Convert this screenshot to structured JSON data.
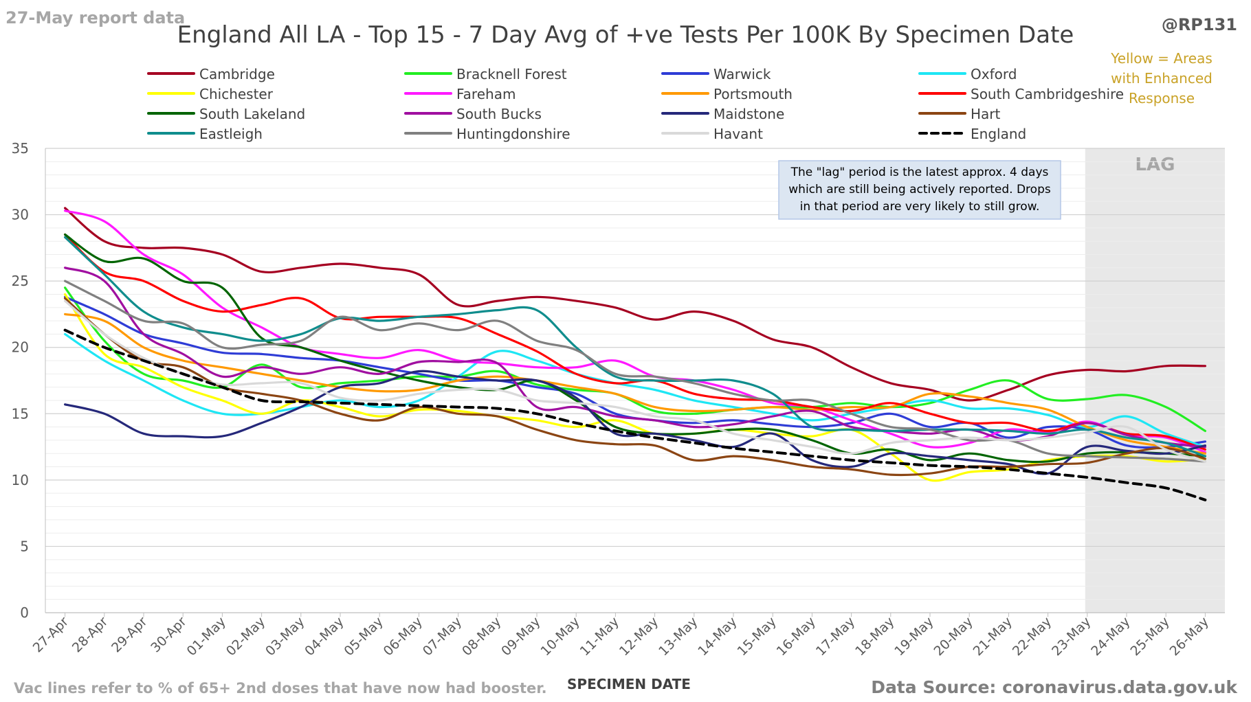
{
  "header": {
    "report_label": "27-May report data",
    "handle": "@RP131",
    "enhanced_note": [
      "Yellow = Areas",
      "with Enhanced",
      "Response"
    ]
  },
  "lag_note": [
    "The \"lag\" period is the latest approx. 4 days",
    "which are still being actively reported.  Drops",
    "in that period are very likely to still grow."
  ],
  "footer": {
    "vac_note": "Vac lines refer to % of 65+ 2nd doses that have now had booster.",
    "source": "Data Source: coronavirus.data.gov.uk"
  },
  "colors": {
    "enhanced_text": "#C9A227",
    "lag_shade": "#E8E8E8",
    "grid": "#E0E0E0",
    "axis_text": "#595959",
    "note_box": "#DCE6F2"
  },
  "chart_data": {
    "type": "line",
    "title": "England All LA - Top 15 - 7 Day Avg of +ve Tests Per 100K By Specimen Date",
    "xlabel": "SPECIMEN DATE",
    "ylabel": "",
    "ylim": [
      0,
      35
    ],
    "yticks": [
      0,
      5,
      10,
      15,
      20,
      25,
      30,
      35
    ],
    "grid": true,
    "legend": "top",
    "lag_label": "LAG",
    "lag_start": "23-May",
    "categories": [
      "27-Apr",
      "28-Apr",
      "29-Apr",
      "30-Apr",
      "01-May",
      "02-May",
      "03-May",
      "04-May",
      "05-May",
      "06-May",
      "07-May",
      "08-May",
      "09-May",
      "10-May",
      "11-May",
      "12-May",
      "13-May",
      "14-May",
      "15-May",
      "16-May",
      "17-May",
      "18-May",
      "19-May",
      "20-May",
      "21-May",
      "22-May",
      "23-May",
      "24-May",
      "25-May",
      "26-May"
    ],
    "series": [
      {
        "name": "Cambridge",
        "color": "#A50021",
        "values": [
          30.5,
          28.0,
          27.5,
          27.5,
          27.0,
          25.7,
          26.0,
          26.3,
          26.0,
          25.5,
          23.2,
          23.5,
          23.8,
          23.5,
          23.0,
          22.1,
          22.7,
          22.0,
          20.6,
          20.0,
          18.5,
          17.3,
          16.8,
          16.0,
          16.8,
          17.9,
          18.3,
          18.2,
          18.6,
          18.6
        ]
      },
      {
        "name": "Bracknell Forest",
        "color": "#22EE22",
        "values": [
          24.5,
          20.5,
          18.0,
          17.5,
          17.0,
          18.7,
          17.0,
          17.3,
          17.5,
          17.8,
          17.8,
          18.2,
          17.2,
          16.8,
          16.5,
          15.2,
          15.0,
          15.3,
          15.5,
          15.5,
          15.8,
          15.5,
          15.8,
          16.8,
          17.5,
          16.1,
          16.1,
          16.4,
          15.5,
          13.7
        ]
      },
      {
        "name": "Warwick",
        "color": "#2E3CD6",
        "values": [
          23.8,
          22.5,
          21.0,
          20.3,
          19.6,
          19.5,
          19.2,
          19.0,
          18.5,
          18.0,
          17.5,
          17.5,
          17.0,
          16.5,
          15.0,
          14.5,
          14.3,
          14.5,
          14.2,
          14.0,
          14.3,
          15.0,
          14.0,
          14.3,
          13.2,
          14.0,
          13.8,
          12.6,
          12.5,
          12.9
        ]
      },
      {
        "name": "Oxford",
        "color": "#1EE6F4",
        "values": [
          21.0,
          19.0,
          17.5,
          16.0,
          15.0,
          15.0,
          15.5,
          16.0,
          15.5,
          16.0,
          17.8,
          19.7,
          19.0,
          18.0,
          17.3,
          16.8,
          16.0,
          15.5,
          15.0,
          14.5,
          15.0,
          15.5,
          16.0,
          15.4,
          15.4,
          14.9,
          14.0,
          14.8,
          13.5,
          12.5
        ]
      },
      {
        "name": "Chichester",
        "color": "#FFFF00",
        "values": [
          24.0,
          19.5,
          18.5,
          17.0,
          16.0,
          15.0,
          16.0,
          15.5,
          14.8,
          15.3,
          15.2,
          14.8,
          14.5,
          14.0,
          14.5,
          13.5,
          13.5,
          13.8,
          13.5,
          13.3,
          13.8,
          12.0,
          10.0,
          10.6,
          10.8,
          11.5,
          11.8,
          11.8,
          11.4,
          11.6
        ]
      },
      {
        "name": "Fareham",
        "color": "#FF19FF",
        "values": [
          30.3,
          29.5,
          27.0,
          25.5,
          23.0,
          21.5,
          20.0,
          19.5,
          19.2,
          19.8,
          19.0,
          18.8,
          18.5,
          18.5,
          19.0,
          17.8,
          17.5,
          16.8,
          15.8,
          15.5,
          14.5,
          13.5,
          12.5,
          12.8,
          13.8,
          13.6,
          14.4,
          13.4,
          13.2,
          12.1
        ]
      },
      {
        "name": "Portsmouth",
        "color": "#FF9900",
        "values": [
          22.5,
          22.0,
          20.0,
          19.0,
          18.5,
          18.0,
          17.5,
          17.0,
          16.7,
          16.8,
          17.5,
          17.8,
          17.5,
          17.0,
          16.5,
          15.5,
          15.2,
          15.3,
          15.5,
          15.3,
          15.5,
          15.5,
          16.5,
          16.3,
          15.8,
          15.3,
          14.0,
          13.0,
          12.5,
          12.0
        ]
      },
      {
        "name": "South Cambridgeshire",
        "color": "#FF0000",
        "values": [
          28.5,
          25.7,
          25.0,
          23.5,
          22.7,
          23.2,
          23.7,
          22.2,
          22.3,
          22.3,
          22.2,
          21.0,
          19.7,
          18.0,
          17.3,
          17.5,
          16.5,
          16.1,
          16.0,
          15.5,
          15.2,
          15.8,
          15.0,
          14.3,
          14.3,
          13.7,
          14.3,
          13.5,
          13.3,
          12.3
        ]
      },
      {
        "name": "South Lakeland",
        "color": "#006400",
        "values": [
          28.5,
          26.5,
          26.7,
          25.0,
          24.5,
          20.7,
          20.0,
          19.0,
          18.2,
          17.5,
          17.0,
          16.8,
          17.5,
          16.0,
          14.0,
          13.5,
          13.5,
          13.8,
          13.8,
          13.0,
          12.0,
          12.3,
          11.5,
          12.0,
          11.5,
          11.4,
          12.0,
          12.1,
          12.0,
          11.8
        ]
      },
      {
        "name": "South Bucks",
        "color": "#A00FA0",
        "values": [
          26.0,
          25.0,
          21.0,
          19.5,
          17.8,
          18.5,
          18.0,
          18.5,
          18.0,
          18.9,
          18.9,
          18.8,
          15.5,
          15.5,
          14.8,
          14.5,
          14.0,
          14.2,
          14.8,
          15.2,
          14.0,
          13.7,
          13.5,
          13.8,
          13.0,
          13.3,
          14.3,
          13.4,
          12.8,
          12.5
        ]
      },
      {
        "name": "Maidstone",
        "color": "#25287A",
        "values": [
          15.7,
          15.0,
          13.5,
          13.3,
          13.3,
          14.3,
          15.5,
          17.0,
          17.3,
          18.2,
          17.8,
          17.5,
          17.5,
          16.2,
          13.5,
          13.5,
          13.0,
          12.5,
          13.5,
          11.5,
          11.0,
          12.0,
          11.8,
          11.5,
          11.2,
          10.5,
          12.5,
          12.2,
          12.0,
          12.6
        ]
      },
      {
        "name": "Hart",
        "color": "#8B4513",
        "values": [
          23.7,
          21.0,
          19.0,
          18.5,
          17.0,
          16.5,
          16.0,
          15.0,
          14.5,
          15.5,
          15.0,
          14.8,
          13.8,
          13.0,
          12.7,
          12.6,
          11.5,
          11.8,
          11.5,
          11.0,
          10.8,
          10.4,
          10.5,
          11.0,
          11.0,
          11.2,
          11.3,
          12.0,
          12.4,
          11.6
        ]
      },
      {
        "name": "Eastleigh",
        "color": "#108D8D",
        "values": [
          28.3,
          25.5,
          22.7,
          21.5,
          21.0,
          20.5,
          21.0,
          22.2,
          22.0,
          22.3,
          22.5,
          22.8,
          22.8,
          20.0,
          17.8,
          17.5,
          17.5,
          17.5,
          16.5,
          14.0,
          13.8,
          13.7,
          13.8,
          13.8,
          13.7,
          13.5,
          13.8,
          13.2,
          12.8,
          11.8
        ]
      },
      {
        "name": "Huntingdonshire",
        "color": "#808080",
        "values": [
          25.0,
          23.5,
          22.0,
          21.8,
          20.0,
          20.2,
          20.5,
          22.3,
          21.3,
          21.8,
          21.3,
          22.0,
          20.5,
          19.8,
          18.0,
          17.8,
          17.3,
          16.5,
          16.0,
          16.0,
          15.0,
          14.0,
          13.8,
          13.0,
          13.0,
          12.0,
          11.8,
          11.7,
          11.6,
          11.4
        ]
      },
      {
        "name": "Havant",
        "color": "#D9D9D9",
        "values": [
          23.5,
          21.0,
          19.2,
          18.0,
          17.2,
          17.3,
          17.3,
          16.2,
          16.0,
          16.5,
          16.8,
          16.8,
          16.0,
          15.8,
          15.5,
          14.8,
          14.5,
          13.5,
          13.0,
          12.5,
          12.0,
          12.8,
          13.0,
          13.2,
          13.0,
          13.2,
          13.6,
          14.0,
          12.3,
          11.4
        ]
      },
      {
        "name": "England",
        "color": "#000000",
        "dashed": true,
        "values": [
          21.3,
          20.0,
          19.0,
          18.0,
          17.0,
          16.0,
          15.9,
          15.8,
          15.7,
          15.6,
          15.5,
          15.4,
          15.0,
          14.3,
          13.7,
          13.2,
          12.8,
          12.4,
          12.1,
          11.8,
          11.5,
          11.3,
          11.1,
          11.0,
          10.8,
          10.5,
          10.2,
          9.8,
          9.4,
          8.5
        ]
      }
    ]
  }
}
